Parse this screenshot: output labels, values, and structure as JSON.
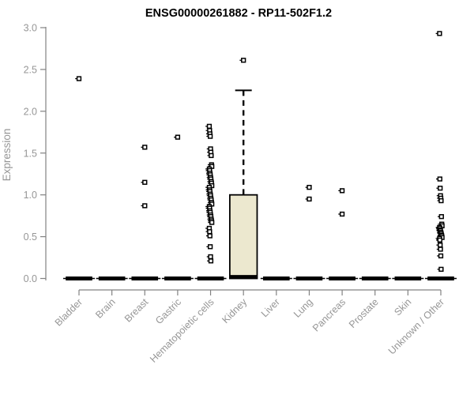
{
  "chart_data": {
    "type": "boxplot",
    "title": "ENSG00000261882 - RP11-502F1.2",
    "ylabel": "Expression",
    "xlabel": "",
    "ylim": [
      0.0,
      3.0
    ],
    "yticks": [
      0.0,
      0.5,
      1.0,
      1.5,
      2.0,
      2.5,
      3.0
    ],
    "grid": false,
    "legend": "none",
    "categories": [
      "Bladder",
      "Brain",
      "Breast",
      "Gastric",
      "Hematopoietic cells",
      "Kidney",
      "Liver",
      "Lung",
      "Pancreas",
      "Prostate",
      "Skin",
      "Unknown / Other"
    ],
    "boxes": [
      {
        "category": "Bladder",
        "q1": 0,
        "median": 0,
        "q3": 0,
        "whisker_low": 0,
        "whisker_high": 0,
        "outliers": [
          2.39
        ]
      },
      {
        "category": "Brain",
        "q1": 0,
        "median": 0,
        "q3": 0,
        "whisker_low": 0,
        "whisker_high": 0,
        "outliers": []
      },
      {
        "category": "Breast",
        "q1": 0,
        "median": 0,
        "q3": 0,
        "whisker_low": 0,
        "whisker_high": 0,
        "outliers": [
          1.57,
          1.15,
          0.87
        ]
      },
      {
        "category": "Gastric",
        "q1": 0,
        "median": 0,
        "q3": 0,
        "whisker_low": 0,
        "whisker_high": 0,
        "outliers": [
          1.69
        ]
      },
      {
        "category": "Hematopoietic cells",
        "q1": 0,
        "median": 0,
        "q3": 0,
        "whisker_low": 0,
        "whisker_high": 0,
        "outliers": [
          1.82,
          1.77,
          1.73,
          1.7,
          1.55,
          1.51,
          1.47,
          1.36,
          1.34,
          1.31,
          1.29,
          1.26,
          1.24,
          1.21,
          1.19,
          1.16,
          1.14,
          1.11,
          1.09,
          1.06,
          1.04,
          1.01,
          0.99,
          0.96,
          0.94,
          0.91,
          0.89,
          0.86,
          0.84,
          0.81,
          0.79,
          0.76,
          0.74,
          0.71,
          0.69,
          0.67,
          0.6,
          0.56,
          0.51,
          0.38,
          0.26,
          0.21
        ]
      },
      {
        "category": "Kidney",
        "q1": 0,
        "median": 0,
        "q3": 1.0,
        "whisker_low": 0,
        "whisker_high": 2.25,
        "outliers": [
          2.61
        ]
      },
      {
        "category": "Liver",
        "q1": 0,
        "median": 0,
        "q3": 0,
        "whisker_low": 0,
        "whisker_high": 0,
        "outliers": []
      },
      {
        "category": "Lung",
        "q1": 0,
        "median": 0,
        "q3": 0,
        "whisker_low": 0,
        "whisker_high": 0,
        "outliers": [
          1.09,
          0.95
        ]
      },
      {
        "category": "Pancreas",
        "q1": 0,
        "median": 0,
        "q3": 0,
        "whisker_low": 0,
        "whisker_high": 0,
        "outliers": [
          1.05,
          0.77
        ]
      },
      {
        "category": "Prostate",
        "q1": 0,
        "median": 0,
        "q3": 0,
        "whisker_low": 0,
        "whisker_high": 0,
        "outliers": []
      },
      {
        "category": "Skin",
        "q1": 0,
        "median": 0,
        "q3": 0,
        "whisker_low": 0,
        "whisker_high": 0,
        "outliers": []
      },
      {
        "category": "Unknown / Other",
        "q1": 0,
        "median": 0,
        "q3": 0,
        "whisker_low": 0,
        "whisker_high": 0,
        "outliers": [
          2.93,
          1.19,
          1.08,
          0.99,
          0.96,
          0.93,
          0.74,
          0.65,
          0.63,
          0.61,
          0.6,
          0.58,
          0.57,
          0.55,
          0.54,
          0.52,
          0.51,
          0.49,
          0.48,
          0.46,
          0.4,
          0.35,
          0.27,
          0.11
        ]
      }
    ],
    "style": {
      "box_fill": "#ECE8CF",
      "box_stroke": "#000000",
      "median_color": "#000000",
      "whisker_style": "dashed",
      "marker": "open-square-with-left-tick",
      "marker_color": "#000000",
      "axis_color": "#828282",
      "tick_text_color": "#969696",
      "title_color": "#000000",
      "background": "#FFFFFF"
    }
  }
}
